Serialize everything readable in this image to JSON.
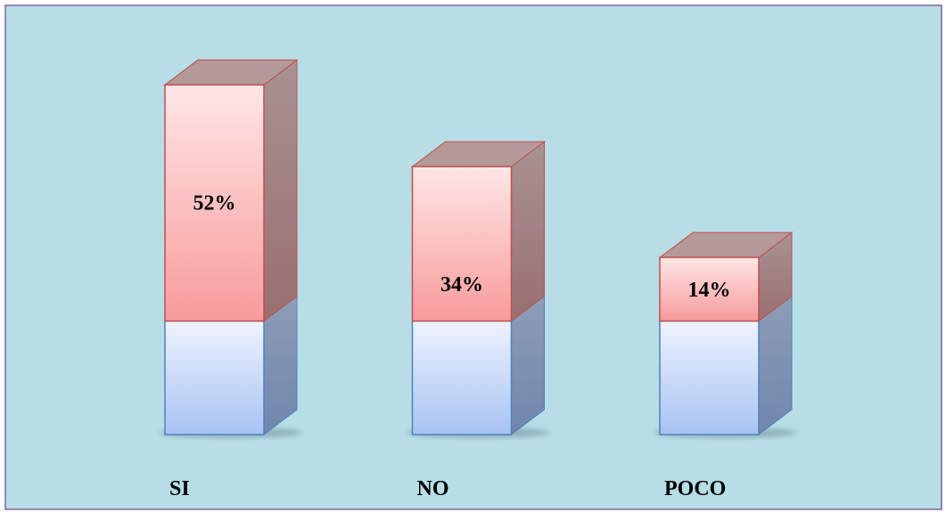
{
  "chart_data": {
    "type": "bar",
    "style": "3d-stacked-column",
    "categories": [
      "SI",
      "NO",
      "POCO"
    ],
    "values": [
      52,
      34,
      14
    ],
    "data_labels": [
      "52%",
      "34%",
      "14%"
    ],
    "base_segment": [
      25,
      25,
      25
    ],
    "ylim": [
      0,
      76
    ],
    "grid": false,
    "legend": "none",
    "title": "",
    "xlabel": "",
    "ylabel": ""
  },
  "colors": {
    "background": "#b7dde7",
    "border": "#8064a2",
    "top_segment_light": "#ffe6e6",
    "top_segment_dark": "#f79b9b",
    "top_segment_outline": "#c0504d",
    "base_segment_light": "#edf3ff",
    "base_segment_dark": "#a8c3f2",
    "base_segment_outline": "#4f81bd",
    "side_face": "#a08786",
    "base_side_face": "#8094b0",
    "text": "#000000"
  }
}
